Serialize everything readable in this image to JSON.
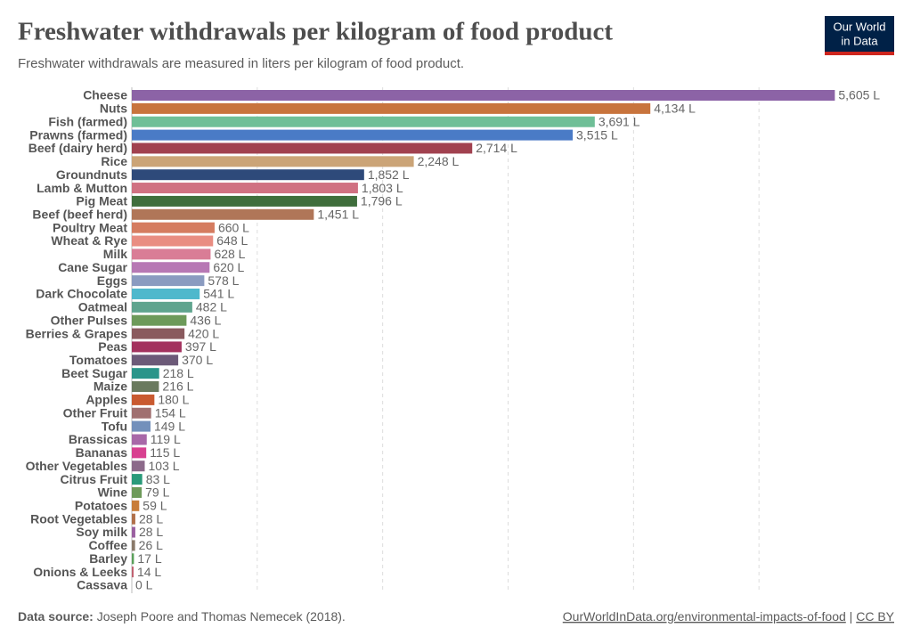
{
  "chart_data": {
    "type": "bar",
    "orientation": "horizontal",
    "title": "Freshwater withdrawals per kilogram of food product",
    "subtitle": "Freshwater withdrawals are measured in liters per kilogram of food product.",
    "categories": [
      "Cheese",
      "Nuts",
      "Fish (farmed)",
      "Prawns (farmed)",
      "Beef (dairy herd)",
      "Rice",
      "Groundnuts",
      "Lamb & Mutton",
      "Pig Meat",
      "Beef (beef herd)",
      "Poultry Meat",
      "Wheat & Rye",
      "Milk",
      "Cane Sugar",
      "Eggs",
      "Dark Chocolate",
      "Oatmeal",
      "Other Pulses",
      "Berries & Grapes",
      "Peas",
      "Tomatoes",
      "Beet Sugar",
      "Maize",
      "Apples",
      "Other Fruit",
      "Tofu",
      "Brassicas",
      "Bananas",
      "Other Vegetables",
      "Citrus Fruit",
      "Wine",
      "Potatoes",
      "Root Vegetables",
      "Soy milk",
      "Coffee",
      "Barley",
      "Onions & Leeks",
      "Cassava"
    ],
    "values": [
      5605,
      4134,
      3691,
      3515,
      2714,
      2248,
      1852,
      1803,
      1796,
      1451,
      660,
      648,
      628,
      620,
      578,
      541,
      482,
      436,
      420,
      397,
      370,
      218,
      216,
      180,
      154,
      149,
      119,
      115,
      103,
      83,
      79,
      59,
      28,
      28,
      26,
      17,
      14,
      0
    ],
    "value_labels": [
      "5,605 L",
      "4,134 L",
      "3,691 L",
      "3,515 L",
      "2,714 L",
      "2,248 L",
      "1,852 L",
      "1,803 L",
      "1,796 L",
      "1,451 L",
      "660 L",
      "648 L",
      "628 L",
      "620 L",
      "578 L",
      "541 L",
      "482 L",
      "436 L",
      "420 L",
      "397 L",
      "370 L",
      "218 L",
      "216 L",
      "180 L",
      "154 L",
      "149 L",
      "119 L",
      "115 L",
      "103 L",
      "83 L",
      "79 L",
      "59 L",
      "28 L",
      "28 L",
      "26 L",
      "17 L",
      "14 L",
      "0 L"
    ],
    "colors": [
      "#8c63a6",
      "#c8743d",
      "#6fbf97",
      "#4a7bc6",
      "#a1414f",
      "#cba477",
      "#2e4a7a",
      "#d07182",
      "#3f6e3c",
      "#b07658",
      "#d57c60",
      "#e98d82",
      "#d97d96",
      "#b778b4",
      "#8a9bc0",
      "#4fb8cc",
      "#5fa48e",
      "#6d9a5a",
      "#8a5a5e",
      "#a3325e",
      "#6c5a78",
      "#2a958a",
      "#6a7a5e",
      "#c95a30",
      "#a07070",
      "#7390bb",
      "#a868a8",
      "#d84090",
      "#8c6a8a",
      "#2a9a7a",
      "#6e9a5a",
      "#c87d3a",
      "#b0704a",
      "#9a60a0",
      "#8a7a6a",
      "#5aa05a",
      "#c06070",
      "#888888"
    ],
    "xlim": [
      0,
      6000
    ],
    "gridlines": [
      1000,
      2000,
      3000,
      4000,
      5000
    ],
    "grid": true,
    "logo": [
      "Our World",
      "in Data"
    ],
    "source_label": "Data source:",
    "source": "Joseph Poore and Thomas Nemecek (2018).",
    "url": "OurWorldInData.org/environmental-impacts-of-food",
    "separator": "|",
    "license": "CC BY"
  }
}
